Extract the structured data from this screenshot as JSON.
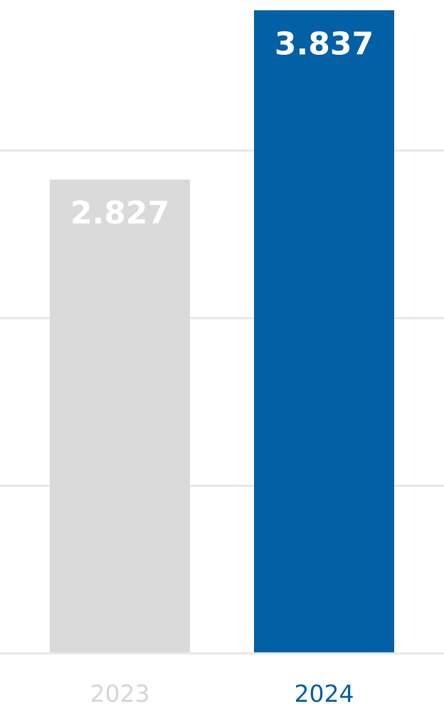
{
  "chart_data": {
    "type": "bar",
    "categories": [
      "2023",
      "2024"
    ],
    "values": [
      2.827,
      3.837
    ],
    "value_labels": [
      "2.827",
      "3.837"
    ],
    "title": "",
    "xlabel": "",
    "ylabel": "",
    "ylim": [
      0,
      3.85
    ],
    "gridlines": [
      1,
      2,
      3,
      4
    ],
    "grid": true,
    "legend": "none",
    "colors": {
      "bars": [
        "#dadada",
        "#0260a5"
      ],
      "category_labels": [
        "#d6d6d6",
        "#0260a5"
      ],
      "grid": "#e8e8e8",
      "value_label": "#ffffff"
    }
  }
}
